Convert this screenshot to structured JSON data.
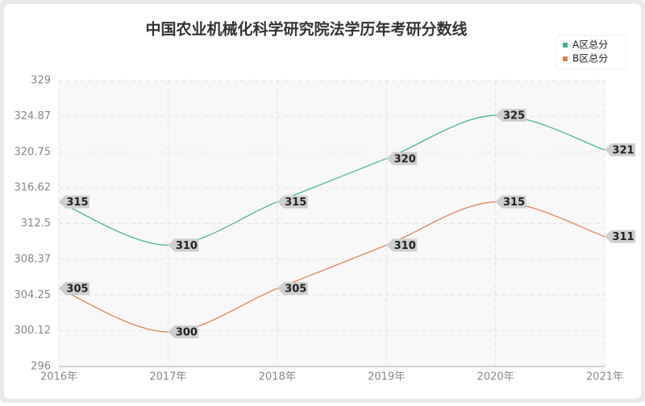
{
  "chart_data": {
    "type": "line",
    "title": "中国农业机械化科学研究院法学历年考研分数线",
    "categories": [
      "2016年",
      "2017年",
      "2018年",
      "2019年",
      "2020年",
      "2021年"
    ],
    "series": [
      {
        "name": "A区总分",
        "color": "#3bb38e",
        "values": [
          315,
          310,
          315,
          320,
          325,
          321
        ]
      },
      {
        "name": "B区总分",
        "color": "#e07a4c",
        "values": [
          305,
          300,
          305,
          310,
          315,
          311
        ]
      }
    ],
    "ylim": [
      296,
      329
    ],
    "yticks": [
      296,
      300.12,
      304.25,
      308.37,
      312.5,
      316.62,
      320.75,
      324.87,
      329
    ],
    "grid": true,
    "smooth": true,
    "legend": "top-right"
  }
}
